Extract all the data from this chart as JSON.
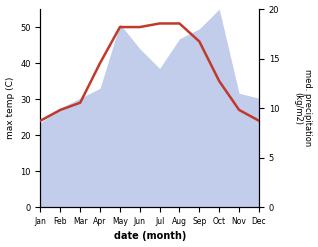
{
  "months": [
    "Jan",
    "Feb",
    "Mar",
    "Apr",
    "May",
    "Jun",
    "Jul",
    "Aug",
    "Sep",
    "Oct",
    "Nov",
    "Dec"
  ],
  "temperature": [
    24,
    27,
    29,
    40,
    50,
    50,
    51,
    51,
    46,
    35,
    27,
    24
  ],
  "precipitation": [
    8.5,
    10,
    11,
    12,
    18.5,
    16,
    14,
    17,
    18,
    20,
    11.5,
    11
  ],
  "temp_color": "#c0392b",
  "precip_fill_color": "#b8c4e8",
  "ylabel_left": "max temp (C)",
  "ylabel_right": "med. precipitation\n(kg/m2)",
  "xlabel": "date (month)",
  "ylim_left": [
    0,
    55
  ],
  "ylim_right": [
    0,
    20
  ],
  "temp_linewidth": 1.8
}
